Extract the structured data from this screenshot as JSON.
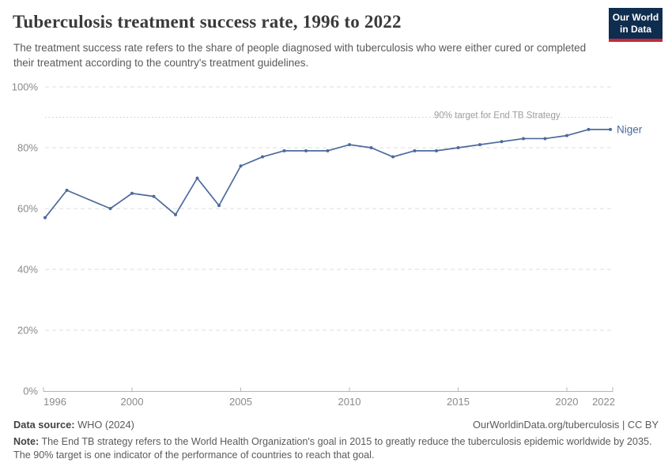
{
  "header": {
    "title": "Tuberculosis treatment success rate, 1996 to 2022",
    "subtitle": "The treatment success rate refers to the share of people diagnosed with tuberculosis who were either cured or completed their treatment according to the country's treatment guidelines.",
    "logo": {
      "line1": "Our World",
      "line2": "in Data",
      "bg_color": "#0f2d4e",
      "accent_color": "#c02b3d"
    }
  },
  "chart_data": {
    "type": "line",
    "title": "Tuberculosis treatment success rate, 1996 to 2022",
    "xlabel": "",
    "ylabel": "",
    "xlim": [
      1996,
      2022
    ],
    "ylim": [
      0,
      100
    ],
    "grid": "horizontal-dashed",
    "legend_position": "end-of-line",
    "x_ticks": [
      1996,
      2000,
      2005,
      2010,
      2015,
      2020,
      2022
    ],
    "y_ticks": [
      0,
      20,
      40,
      60,
      80,
      100
    ],
    "y_tick_suffix": "%",
    "target_line": {
      "value": 90,
      "label": "90% target for End TB Strategy"
    },
    "series": [
      {
        "name": "Niger",
        "color": "#4c6a9c",
        "points": [
          [
            1996,
            57
          ],
          [
            1997,
            66
          ],
          [
            1999,
            60
          ],
          [
            2000,
            65
          ],
          [
            2001,
            64
          ],
          [
            2002,
            58
          ],
          [
            2003,
            70
          ],
          [
            2004,
            61
          ],
          [
            2005,
            74
          ],
          [
            2006,
            77
          ],
          [
            2007,
            79
          ],
          [
            2008,
            79
          ],
          [
            2009,
            79
          ],
          [
            2010,
            81
          ],
          [
            2011,
            80
          ],
          [
            2012,
            77
          ],
          [
            2013,
            79
          ],
          [
            2014,
            79
          ],
          [
            2015,
            80
          ],
          [
            2016,
            81
          ],
          [
            2017,
            82
          ],
          [
            2018,
            83
          ],
          [
            2019,
            83
          ],
          [
            2020,
            84
          ],
          [
            2021,
            86
          ],
          [
            2022,
            86
          ]
        ]
      }
    ]
  },
  "footer": {
    "data_source_label": "Data source:",
    "data_source_value": "WHO (2024)",
    "attribution": "OurWorldinData.org/tuberculosis | CC BY",
    "note_label": "Note:",
    "note_text": "The End TB strategy refers to the World Health Organization's goal in 2015 to greatly reduce the tuberculosis epidemic worldwide by 2035. The 90% target is one indicator of the performance of countries to reach that goal."
  }
}
